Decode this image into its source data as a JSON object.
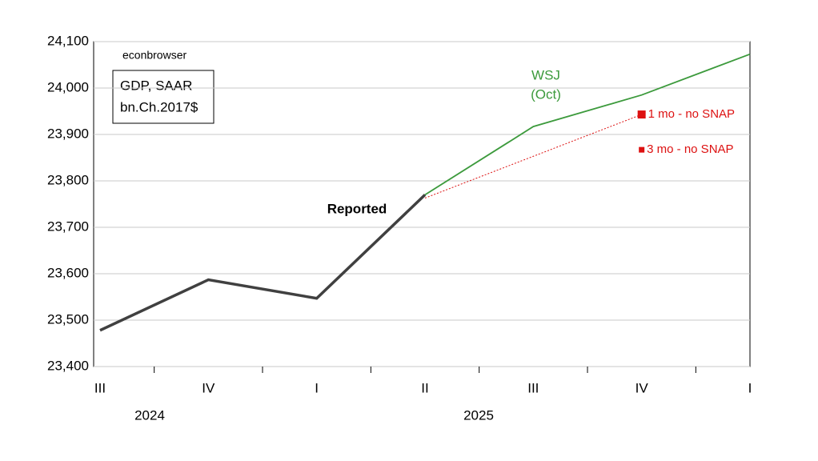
{
  "chart_data": {
    "type": "line",
    "categories": [
      "III",
      "IV",
      "I",
      "II",
      "III",
      "IV",
      "I"
    ],
    "year_labels": [
      "2024",
      "2025"
    ],
    "ylim": [
      23400,
      24100
    ],
    "yticks": [
      {
        "value": 23400,
        "label": "23,400"
      },
      {
        "value": 23500,
        "label": "23,500"
      },
      {
        "value": 23600,
        "label": "23,600"
      },
      {
        "value": 23700,
        "label": "23,700"
      },
      {
        "value": 23800,
        "label": "23,800"
      },
      {
        "value": 23900,
        "label": "23,900"
      },
      {
        "value": 24000,
        "label": "24,000"
      },
      {
        "value": 24100,
        "label": "24,100"
      }
    ],
    "grid": true,
    "series": [
      {
        "name": "Reported",
        "color": "#404040",
        "values": [
          23478,
          23587,
          23547,
          23770,
          null,
          null,
          null
        ]
      },
      {
        "name": "WSJ",
        "color": "#3c9a3c",
        "values": [
          null,
          null,
          null,
          23770,
          23917,
          23985,
          24073
        ]
      },
      {
        "name": "1 mo - no SNAP",
        "color": "#dd1111",
        "values": [
          null,
          null,
          null,
          23763,
          23853,
          23943,
          null
        ]
      },
      {
        "name": "3 mo - no SNAP",
        "color": "#dd1111",
        "values": [
          null,
          null,
          null,
          null,
          null,
          23867,
          null
        ]
      }
    ],
    "annotations": [
      "econbrowser",
      "GDP, SAAR",
      "bn.Ch.2017$",
      "(Oct)"
    ]
  }
}
